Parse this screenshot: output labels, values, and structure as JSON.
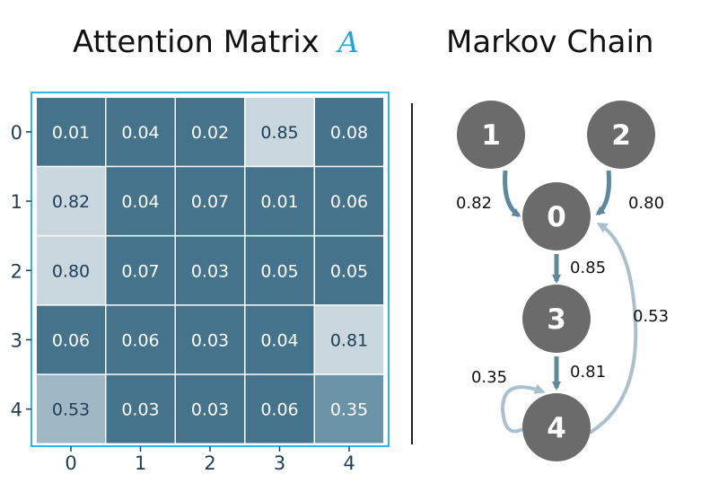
{
  "left_panel": {
    "title": "Attention Matrix",
    "title_variable": "A",
    "row_labels": [
      "0",
      "1",
      "2",
      "3",
      "4"
    ],
    "col_labels": [
      "0",
      "1",
      "2",
      "3",
      "4"
    ],
    "matrix": [
      [
        "0.01",
        "0.04",
        "0.02",
        "0.85",
        "0.08"
      ],
      [
        "0.82",
        "0.04",
        "0.07",
        "0.01",
        "0.06"
      ],
      [
        "0.80",
        "0.07",
        "0.03",
        "0.05",
        "0.05"
      ],
      [
        "0.06",
        "0.06",
        "0.03",
        "0.04",
        "0.81"
      ],
      [
        "0.53",
        "0.03",
        "0.03",
        "0.06",
        "0.35"
      ]
    ]
  },
  "right_panel": {
    "title": "Markov Chain",
    "nodes": [
      "1",
      "2",
      "0",
      "3",
      "4"
    ],
    "edges": [
      {
        "from": "1",
        "to": "0",
        "label": "0.82"
      },
      {
        "from": "2",
        "to": "0",
        "label": "0.80"
      },
      {
        "from": "0",
        "to": "3",
        "label": "0.85"
      },
      {
        "from": "3",
        "to": "4",
        "label": "0.81"
      },
      {
        "from": "4",
        "to": "0",
        "label": "0.53"
      },
      {
        "from": "4",
        "to": "4",
        "label": "0.35"
      }
    ]
  },
  "colors": {
    "dark_cell": "#44738b",
    "light_cell": "#c9d7df",
    "mid_cell": "#a0b8c6",
    "mid_dark_cell": "#6a93a8",
    "frame": "#31b5e8",
    "node": "#6b6b6b",
    "arrow_strong": "#5d899f",
    "arrow_weak": "#a9c1cf",
    "title_variable": "#1fa6de"
  }
}
